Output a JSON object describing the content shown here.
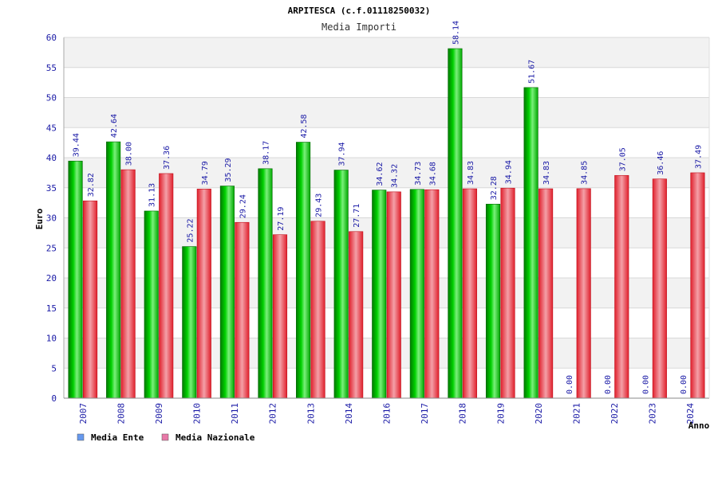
{
  "chart_data": {
    "type": "bar",
    "title": "ARPITESCA (c.f.01118250032)",
    "subtitle": "Media Importi",
    "xlabel": "Anno",
    "ylabel": "Euro",
    "ylim": [
      0,
      60
    ],
    "yticks": [
      "0",
      "5",
      "10",
      "15",
      "20",
      "25",
      "30",
      "35",
      "40",
      "45",
      "50",
      "55",
      "60"
    ],
    "grid": true,
    "legend_position": "bottom-left",
    "categories": [
      "2007",
      "2008",
      "2009",
      "2010",
      "2011",
      "2012",
      "2013",
      "2014",
      "2016",
      "2017",
      "2018",
      "2019",
      "2020",
      "2021",
      "2022",
      "2023",
      "2024"
    ],
    "series": [
      {
        "name": "Media Ente",
        "color": "#00b000",
        "legend_color": "#6699ee",
        "values": [
          39.44,
          42.64,
          31.13,
          25.22,
          35.29,
          38.17,
          42.58,
          37.94,
          34.62,
          34.73,
          58.14,
          32.28,
          51.67,
          0,
          0,
          0,
          0
        ],
        "labels": [
          "39.44",
          "42.64",
          "31.13",
          "25.22",
          "35.29",
          "38.17",
          "42.58",
          "37.94",
          "34.62",
          "34.73",
          "58.14",
          "32.28",
          "51.67",
          "0.00",
          "0.00",
          "0.00",
          "0.00"
        ]
      },
      {
        "name": "Media Nazionale",
        "color": "#e8283c",
        "legend_color": "#e879a8",
        "values": [
          32.82,
          38.0,
          37.36,
          34.79,
          29.24,
          27.19,
          29.43,
          27.71,
          34.32,
          34.68,
          34.83,
          34.94,
          34.83,
          34.85,
          37.05,
          36.46,
          37.49
        ],
        "labels": [
          "32.82",
          "38.00",
          "37.36",
          "34.79",
          "29.24",
          "27.19",
          "29.43",
          "27.71",
          "34.32",
          "34.68",
          "34.83",
          "34.94",
          "34.83",
          "34.85",
          "37.05",
          "36.46",
          "37.49"
        ]
      }
    ]
  }
}
